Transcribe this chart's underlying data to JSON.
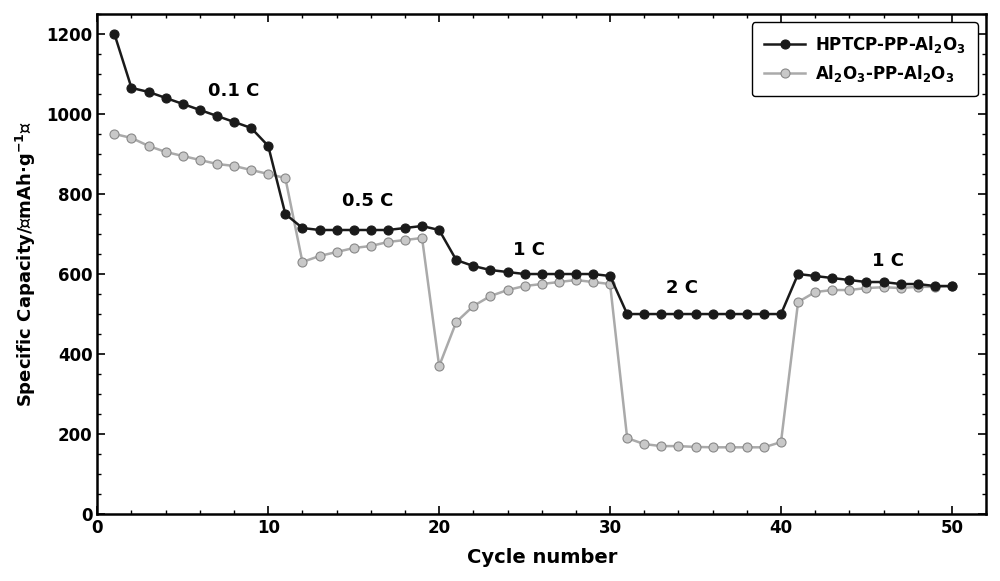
{
  "black_x": [
    1,
    2,
    3,
    4,
    5,
    6,
    7,
    8,
    9,
    10,
    11,
    12,
    13,
    14,
    15,
    16,
    17,
    18,
    19,
    20,
    21,
    22,
    23,
    24,
    25,
    26,
    27,
    28,
    29,
    30,
    31,
    32,
    33,
    34,
    35,
    36,
    37,
    38,
    39,
    40,
    41,
    42,
    43,
    44,
    45,
    46,
    47,
    48,
    49,
    50
  ],
  "black_y": [
    1200,
    1065,
    1055,
    1040,
    1025,
    1010,
    995,
    980,
    965,
    920,
    750,
    715,
    710,
    710,
    710,
    710,
    710,
    715,
    720,
    710,
    635,
    620,
    610,
    605,
    600,
    600,
    600,
    600,
    600,
    595,
    500,
    500,
    500,
    500,
    500,
    500,
    500,
    500,
    500,
    500,
    600,
    595,
    590,
    585,
    580,
    580,
    575,
    575,
    570,
    570
  ],
  "gray_x": [
    1,
    2,
    3,
    4,
    5,
    6,
    7,
    8,
    9,
    10,
    11,
    12,
    13,
    14,
    15,
    16,
    17,
    18,
    19,
    20,
    21,
    22,
    23,
    24,
    25,
    26,
    27,
    28,
    29,
    30,
    31,
    32,
    33,
    34,
    35,
    36,
    37,
    38,
    39,
    40,
    41,
    42,
    43,
    44,
    45,
    46,
    47,
    48,
    49,
    50
  ],
  "gray_y": [
    950,
    940,
    920,
    905,
    895,
    885,
    875,
    870,
    860,
    850,
    840,
    630,
    645,
    655,
    665,
    670,
    680,
    685,
    690,
    370,
    480,
    520,
    545,
    560,
    570,
    575,
    580,
    585,
    580,
    575,
    190,
    175,
    170,
    170,
    168,
    167,
    167,
    167,
    167,
    180,
    530,
    555,
    560,
    560,
    565,
    567,
    565,
    568,
    568,
    570
  ],
  "black_color": "#1a1a1a",
  "gray_line_color": "#aaaaaa",
  "gray_marker_face": "#c8c8c8",
  "gray_marker_edge": "#888888",
  "xlabel": "Cycle number",
  "ylim": [
    0,
    1250
  ],
  "xlim": [
    0,
    52
  ],
  "yticks": [
    0,
    200,
    400,
    600,
    800,
    1000,
    1200
  ],
  "xticks": [
    0,
    10,
    20,
    30,
    40,
    50
  ],
  "legend1": "HPTCP-PP-Al$_2$O$_3$",
  "legend2": "Al$_2$O$_3$-PP-Al$_2$O$_3$",
  "ann_01C_x": 6.5,
  "ann_01C_y": 1045,
  "ann_05C_x": 14.3,
  "ann_05C_y": 770,
  "ann_1C_x": 24.3,
  "ann_1C_y": 648,
  "ann_2C_x": 33.3,
  "ann_2C_y": 553,
  "ann_1C2_x": 45.3,
  "ann_1C2_y": 620
}
